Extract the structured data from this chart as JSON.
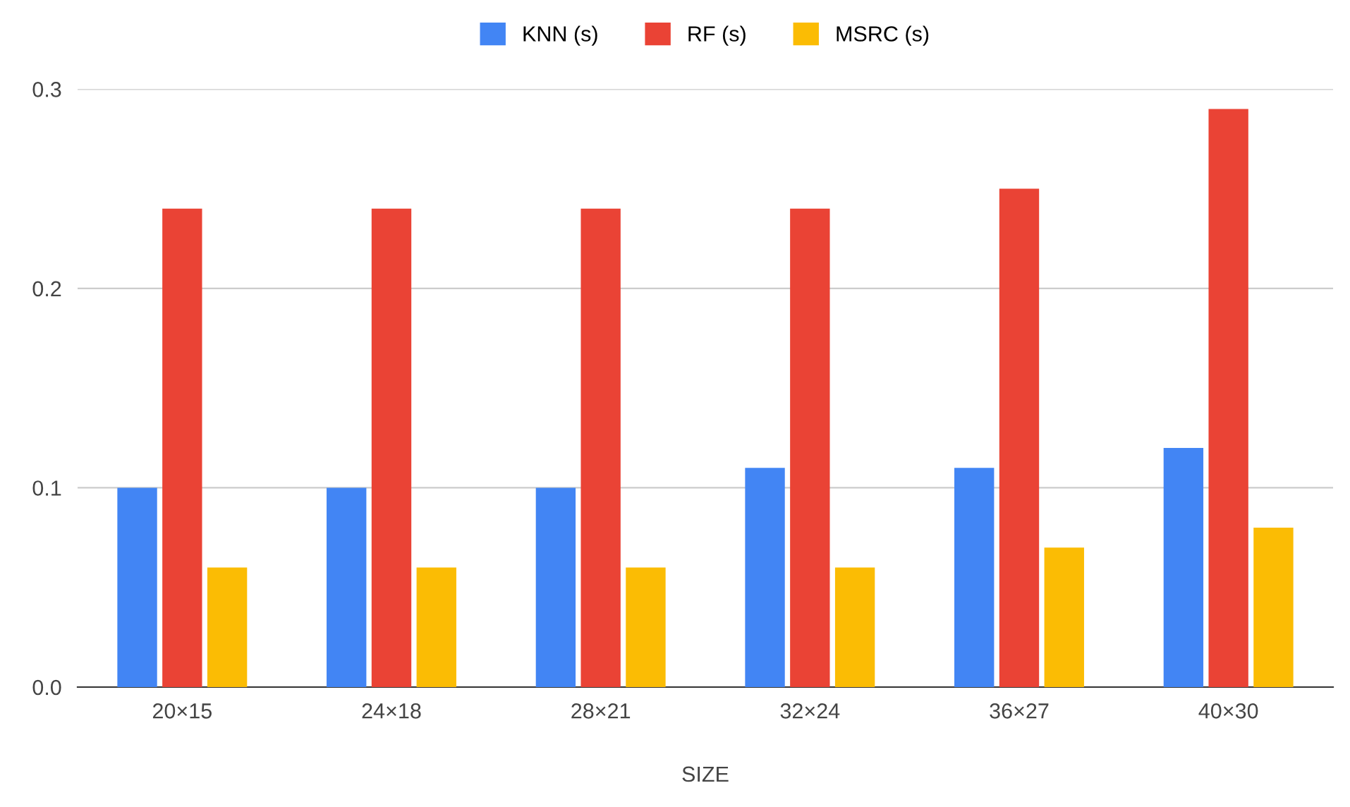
{
  "chart_data": {
    "type": "bar",
    "xlabel": "SIZE",
    "categories": [
      "20×15",
      "24×18",
      "28×21",
      "32×24",
      "36×27",
      "40×30"
    ],
    "series": [
      {
        "name": "KNN (s)",
        "color": "#4285f4",
        "values": [
          0.1,
          0.1,
          0.1,
          0.11,
          0.11,
          0.12
        ]
      },
      {
        "name": "RF (s)",
        "color": "#ea4335",
        "values": [
          0.24,
          0.24,
          0.24,
          0.24,
          0.25,
          0.29
        ]
      },
      {
        "name": "MSRC (s)",
        "color": "#fbbc04",
        "values": [
          0.06,
          0.06,
          0.06,
          0.06,
          0.07,
          0.08
        ]
      }
    ],
    "ylim": [
      0,
      0.3
    ],
    "yticks": [
      {
        "value": 0,
        "label": "0.0"
      },
      {
        "value": 0.1,
        "label": "0.1"
      },
      {
        "value": 0.2,
        "label": "0.2"
      },
      {
        "value": 0.3,
        "label": "0.3"
      }
    ],
    "grid": "y",
    "legend": "top"
  }
}
